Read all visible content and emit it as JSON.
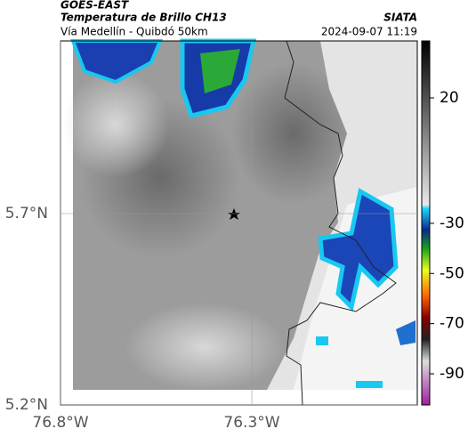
{
  "header": {
    "source": "GOES-EAST",
    "title": "Temperatura de Brillo CH13",
    "brand": "SIATA",
    "subtitle": "Vía Medellín - Quibdó 50km",
    "datetime": "2024-09-07 11:19"
  },
  "map": {
    "xticks": [
      {
        "value": -76.8,
        "label": "76.8°W"
      },
      {
        "value": -76.3,
        "label": "76.3°W"
      }
    ],
    "yticks": [
      {
        "value": 5.7,
        "label": "5.7°N"
      },
      {
        "value": 5.2,
        "label": "5.2°N"
      }
    ]
  },
  "colorbar": {
    "ticks": [
      20,
      -30,
      -50,
      -70,
      -90
    ]
  }
}
